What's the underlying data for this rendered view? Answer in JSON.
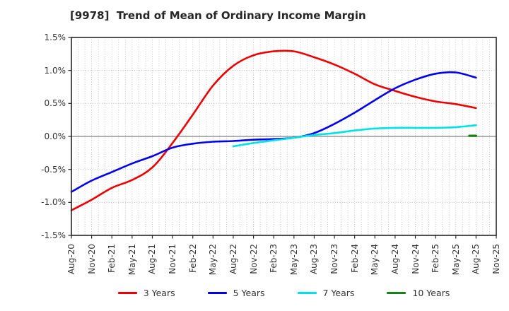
{
  "chart_data": {
    "type": "line",
    "title": "[9978]  Trend of Mean of Ordinary Income Margin",
    "y_unit": "%",
    "ylim": [
      -1.5,
      1.5
    ],
    "y_tick_step": 0.5,
    "y_tick_labels": [
      "1.5%",
      "1.0%",
      "0.5%",
      "0.0%",
      "-0.5%",
      "-1.0%",
      "-1.5%"
    ],
    "x_tick_labels": [
      "Aug-20",
      "Nov-20",
      "Feb-21",
      "May-21",
      "Aug-21",
      "Nov-21",
      "Feb-22",
      "May-22",
      "Aug-22",
      "Nov-22",
      "Feb-23",
      "May-23",
      "Aug-23",
      "Nov-23",
      "Feb-24",
      "May-24",
      "Aug-24",
      "Nov-24",
      "Feb-25",
      "May-25",
      "Aug-25",
      "Nov-25"
    ],
    "x_total_months": 63,
    "grid": true,
    "legend_position": "bottom",
    "series": [
      {
        "name": "3 Years",
        "color": "#ee0000",
        "start_month": 0,
        "step_months": 3,
        "values": [
          -1.12,
          -0.96,
          -0.78,
          -0.66,
          -0.47,
          -0.1,
          0.33,
          0.77,
          1.07,
          1.23,
          1.29,
          1.29,
          1.2,
          1.09,
          0.95,
          0.79,
          0.69,
          0.6,
          0.53,
          0.49,
          0.43
        ]
      },
      {
        "name": "5 Years",
        "color": "#0000ee",
        "start_month": 0,
        "step_months": 3,
        "values": [
          -0.84,
          -0.67,
          -0.54,
          -0.41,
          -0.3,
          -0.17,
          -0.11,
          -0.08,
          -0.07,
          -0.05,
          -0.04,
          -0.02,
          0.05,
          0.19,
          0.36,
          0.55,
          0.73,
          0.86,
          0.95,
          0.97,
          0.89
        ]
      },
      {
        "name": "7 Years",
        "color": "#00e1e8",
        "start_month": 24,
        "step_months": 3,
        "values": [
          -0.15,
          -0.1,
          -0.06,
          -0.02,
          0.02,
          0.05,
          0.09,
          0.12,
          0.13,
          0.13,
          0.13,
          0.14,
          0.17
        ]
      },
      {
        "name": "10 Years",
        "color": "#178217",
        "start_month": 59,
        "step_months": 1,
        "values": [
          0.01,
          0.01
        ]
      }
    ],
    "style": {
      "grid_color": "#b3b3b3",
      "zero_line_color": "#808080",
      "spine_color": "#262626",
      "tick_text_color": "#333333",
      "title_color": "#262626",
      "background": "#ffffff"
    }
  }
}
